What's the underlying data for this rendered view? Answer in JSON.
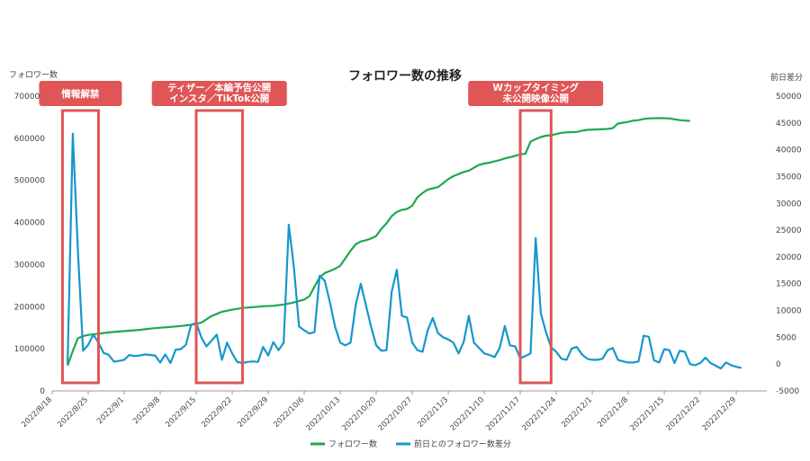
{
  "chart_data": {
    "type": "line",
    "title": "フォロワー数の推移",
    "y_left_label": "フォロワー数",
    "y_right_label": "前日差分",
    "y_left_lim": [
      0,
      700000
    ],
    "y_left_ticks": [
      "0",
      "100000",
      "200000",
      "300000",
      "400000",
      "500000",
      "600000",
      "700000"
    ],
    "y_right_lim": [
      -5000,
      50000
    ],
    "y_right_ticks": [
      "-5000",
      "0",
      "5000",
      "10000",
      "15000",
      "20000",
      "25000",
      "30000",
      "35000",
      "40000",
      "45000",
      "50000"
    ],
    "x_ticks": [
      "2022/8/18",
      "2022/8/25",
      "2022/9/1",
      "2022/9/8",
      "2022/9/15",
      "2022/9/22",
      "2022/9/29",
      "2022/10/6",
      "2022/10/13",
      "2022/10/20",
      "2022/10/27",
      "2022/11/3",
      "2022/11/10",
      "2022/11/17",
      "2022/11/24",
      "2022/12/1",
      "2022/12/8",
      "2022/12/15",
      "2022/12/22",
      "2022/12/29"
    ],
    "start_date": "2022/8/18",
    "grid": false,
    "legend_position": "bottom",
    "series": [
      {
        "name": "フォロワー数",
        "axis": "left",
        "color": "#1fa84f",
        "points": [
          [
            3,
            60000
          ],
          [
            4,
            95000
          ],
          [
            5,
            125000
          ],
          [
            6,
            130000
          ],
          [
            7,
            133000
          ],
          [
            9,
            136000
          ],
          [
            11,
            139000
          ],
          [
            13,
            141000
          ],
          [
            15,
            143000
          ],
          [
            17,
            145000
          ],
          [
            19,
            148000
          ],
          [
            21,
            150000
          ],
          [
            23,
            152000
          ],
          [
            25,
            154000
          ],
          [
            27,
            157000
          ],
          [
            29,
            162000
          ],
          [
            30,
            170000
          ],
          [
            31,
            178000
          ],
          [
            32,
            183000
          ],
          [
            33,
            188000
          ],
          [
            35,
            193000
          ],
          [
            37,
            197000
          ],
          [
            39,
            199000
          ],
          [
            41,
            201000
          ],
          [
            43,
            202000
          ],
          [
            45,
            205000
          ],
          [
            47,
            210000
          ],
          [
            49,
            217000
          ],
          [
            50,
            225000
          ],
          [
            51,
            248000
          ],
          [
            52,
            270000
          ],
          [
            53,
            280000
          ],
          [
            54,
            285000
          ],
          [
            55,
            290000
          ],
          [
            56,
            297000
          ],
          [
            57,
            315000
          ],
          [
            58,
            333000
          ],
          [
            59,
            348000
          ],
          [
            60,
            355000
          ],
          [
            61,
            358000
          ],
          [
            62,
            362000
          ],
          [
            63,
            368000
          ],
          [
            64,
            385000
          ],
          [
            65,
            398000
          ],
          [
            66,
            415000
          ],
          [
            67,
            425000
          ],
          [
            68,
            430000
          ],
          [
            69,
            432000
          ],
          [
            70,
            440000
          ],
          [
            71,
            460000
          ],
          [
            72,
            470000
          ],
          [
            73,
            478000
          ],
          [
            74,
            481000
          ],
          [
            75,
            484000
          ],
          [
            76,
            493000
          ],
          [
            77,
            503000
          ],
          [
            78,
            510000
          ],
          [
            79,
            515000
          ],
          [
            80,
            520000
          ],
          [
            81,
            523000
          ],
          [
            82,
            530000
          ],
          [
            83,
            537000
          ],
          [
            84,
            540000
          ],
          [
            85,
            542000
          ],
          [
            86,
            545000
          ],
          [
            87,
            548000
          ],
          [
            88,
            552000
          ],
          [
            89,
            555000
          ],
          [
            90,
            558000
          ],
          [
            91,
            562000
          ],
          [
            92,
            563000
          ],
          [
            93,
            592000
          ],
          [
            94,
            598000
          ],
          [
            95,
            603000
          ],
          [
            96,
            606000
          ],
          [
            97,
            607000
          ],
          [
            98,
            610000
          ],
          [
            99,
            613000
          ],
          [
            100,
            614000
          ],
          [
            102,
            615000
          ],
          [
            103,
            618000
          ],
          [
            104,
            620000
          ],
          [
            106,
            621000
          ],
          [
            108,
            622000
          ],
          [
            109,
            624000
          ],
          [
            110,
            635000
          ],
          [
            111,
            637000
          ],
          [
            112,
            639000
          ],
          [
            113,
            642000
          ],
          [
            114,
            643000
          ],
          [
            115,
            646000
          ],
          [
            116,
            647000
          ],
          [
            118,
            648000
          ],
          [
            120,
            647000
          ],
          [
            122,
            643000
          ],
          [
            124,
            641000
          ]
        ]
      },
      {
        "name": "前日との フォロワー数差分",
        "display_name": "前日とのフォロワー数差分",
        "axis": "right",
        "color": "#1796cc",
        "points": [
          [
            3,
            0
          ],
          [
            4,
            43000
          ],
          [
            5,
            21000
          ],
          [
            6,
            2500
          ],
          [
            7,
            3600
          ],
          [
            8,
            5500
          ],
          [
            9,
            4000
          ],
          [
            10,
            2100
          ],
          [
            11,
            1700
          ],
          [
            12,
            450
          ],
          [
            13,
            600
          ],
          [
            14,
            800
          ],
          [
            15,
            1700
          ],
          [
            16,
            1500
          ],
          [
            17,
            1600
          ],
          [
            18,
            1800
          ],
          [
            19,
            1700
          ],
          [
            20,
            1600
          ],
          [
            21,
            300
          ],
          [
            22,
            1800
          ],
          [
            23,
            200
          ],
          [
            24,
            2700
          ],
          [
            25,
            2800
          ],
          [
            26,
            3600
          ],
          [
            27,
            7300
          ],
          [
            28,
            7700
          ],
          [
            29,
            5000
          ],
          [
            30,
            3300
          ],
          [
            31,
            4400
          ],
          [
            32,
            5500
          ],
          [
            33,
            800
          ],
          [
            34,
            4000
          ],
          [
            35,
            2000
          ],
          [
            36,
            400
          ],
          [
            37,
            200
          ],
          [
            38,
            400
          ],
          [
            39,
            500
          ],
          [
            40,
            400
          ],
          [
            41,
            3200
          ],
          [
            42,
            1600
          ],
          [
            43,
            4100
          ],
          [
            44,
            2600
          ],
          [
            45,
            4000
          ],
          [
            46,
            26000
          ],
          [
            47,
            18000
          ],
          [
            48,
            7000
          ],
          [
            49,
            6300
          ],
          [
            50,
            5700
          ],
          [
            51,
            6000
          ],
          [
            52,
            16500
          ],
          [
            53,
            15500
          ],
          [
            54,
            11500
          ],
          [
            55,
            7000
          ],
          [
            56,
            4000
          ],
          [
            57,
            3500
          ],
          [
            58,
            4000
          ],
          [
            59,
            11000
          ],
          [
            60,
            15000
          ],
          [
            61,
            11000
          ],
          [
            62,
            7000
          ],
          [
            63,
            3500
          ],
          [
            64,
            2500
          ],
          [
            65,
            2600
          ],
          [
            66,
            13500
          ],
          [
            67,
            17600
          ],
          [
            68,
            9000
          ],
          [
            69,
            8700
          ],
          [
            70,
            4000
          ],
          [
            71,
            2600
          ],
          [
            72,
            2300
          ],
          [
            73,
            6300
          ],
          [
            74,
            8600
          ],
          [
            75,
            5800
          ],
          [
            76,
            5000
          ],
          [
            77,
            4600
          ],
          [
            78,
            4000
          ],
          [
            79,
            2000
          ],
          [
            80,
            4100
          ],
          [
            81,
            9000
          ],
          [
            82,
            4000
          ],
          [
            83,
            3000
          ],
          [
            84,
            2000
          ],
          [
            85,
            1700
          ],
          [
            86,
            1300
          ],
          [
            87,
            3000
          ],
          [
            88,
            7100
          ],
          [
            89,
            3500
          ],
          [
            90,
            3300
          ],
          [
            91,
            1100
          ],
          [
            92,
            1500
          ],
          [
            93,
            2000
          ],
          [
            94,
            23500
          ],
          [
            95,
            9500
          ],
          [
            96,
            6000
          ],
          [
            97,
            3100
          ],
          [
            98,
            2300
          ],
          [
            99,
            1000
          ],
          [
            100,
            800
          ],
          [
            101,
            2900
          ],
          [
            102,
            3200
          ],
          [
            103,
            1800
          ],
          [
            104,
            1000
          ],
          [
            105,
            800
          ],
          [
            106,
            800
          ],
          [
            107,
            1000
          ],
          [
            108,
            2600
          ],
          [
            109,
            3000
          ],
          [
            110,
            800
          ],
          [
            111,
            500
          ],
          [
            112,
            300
          ],
          [
            113,
            300
          ],
          [
            114,
            500
          ],
          [
            115,
            5300
          ],
          [
            116,
            5100
          ],
          [
            117,
            700
          ],
          [
            118,
            300
          ],
          [
            119,
            2800
          ],
          [
            120,
            2600
          ],
          [
            121,
            200
          ],
          [
            122,
            2500
          ],
          [
            123,
            2300
          ],
          [
            124,
            0
          ],
          [
            125,
            -200
          ],
          [
            126,
            200
          ],
          [
            127,
            1200
          ],
          [
            128,
            200
          ],
          [
            129,
            -300
          ],
          [
            130,
            -800
          ],
          [
            131,
            300
          ],
          [
            132,
            -200
          ],
          [
            133,
            -500
          ],
          [
            134,
            -700
          ]
        ]
      }
    ],
    "annotations": [
      {
        "label": "情報解禁",
        "day_from": 2,
        "day_to": 9,
        "color": "#e05555"
      },
      {
        "label": "ティザー／本編予告公開\nインスタ／TikTok公開",
        "day_from": 28,
        "day_to": 37,
        "color": "#e05555"
      },
      {
        "label": "Wカップタイミング\n未公開映像公開",
        "day_from": 91,
        "day_to": 97,
        "color": "#e05555"
      }
    ]
  }
}
